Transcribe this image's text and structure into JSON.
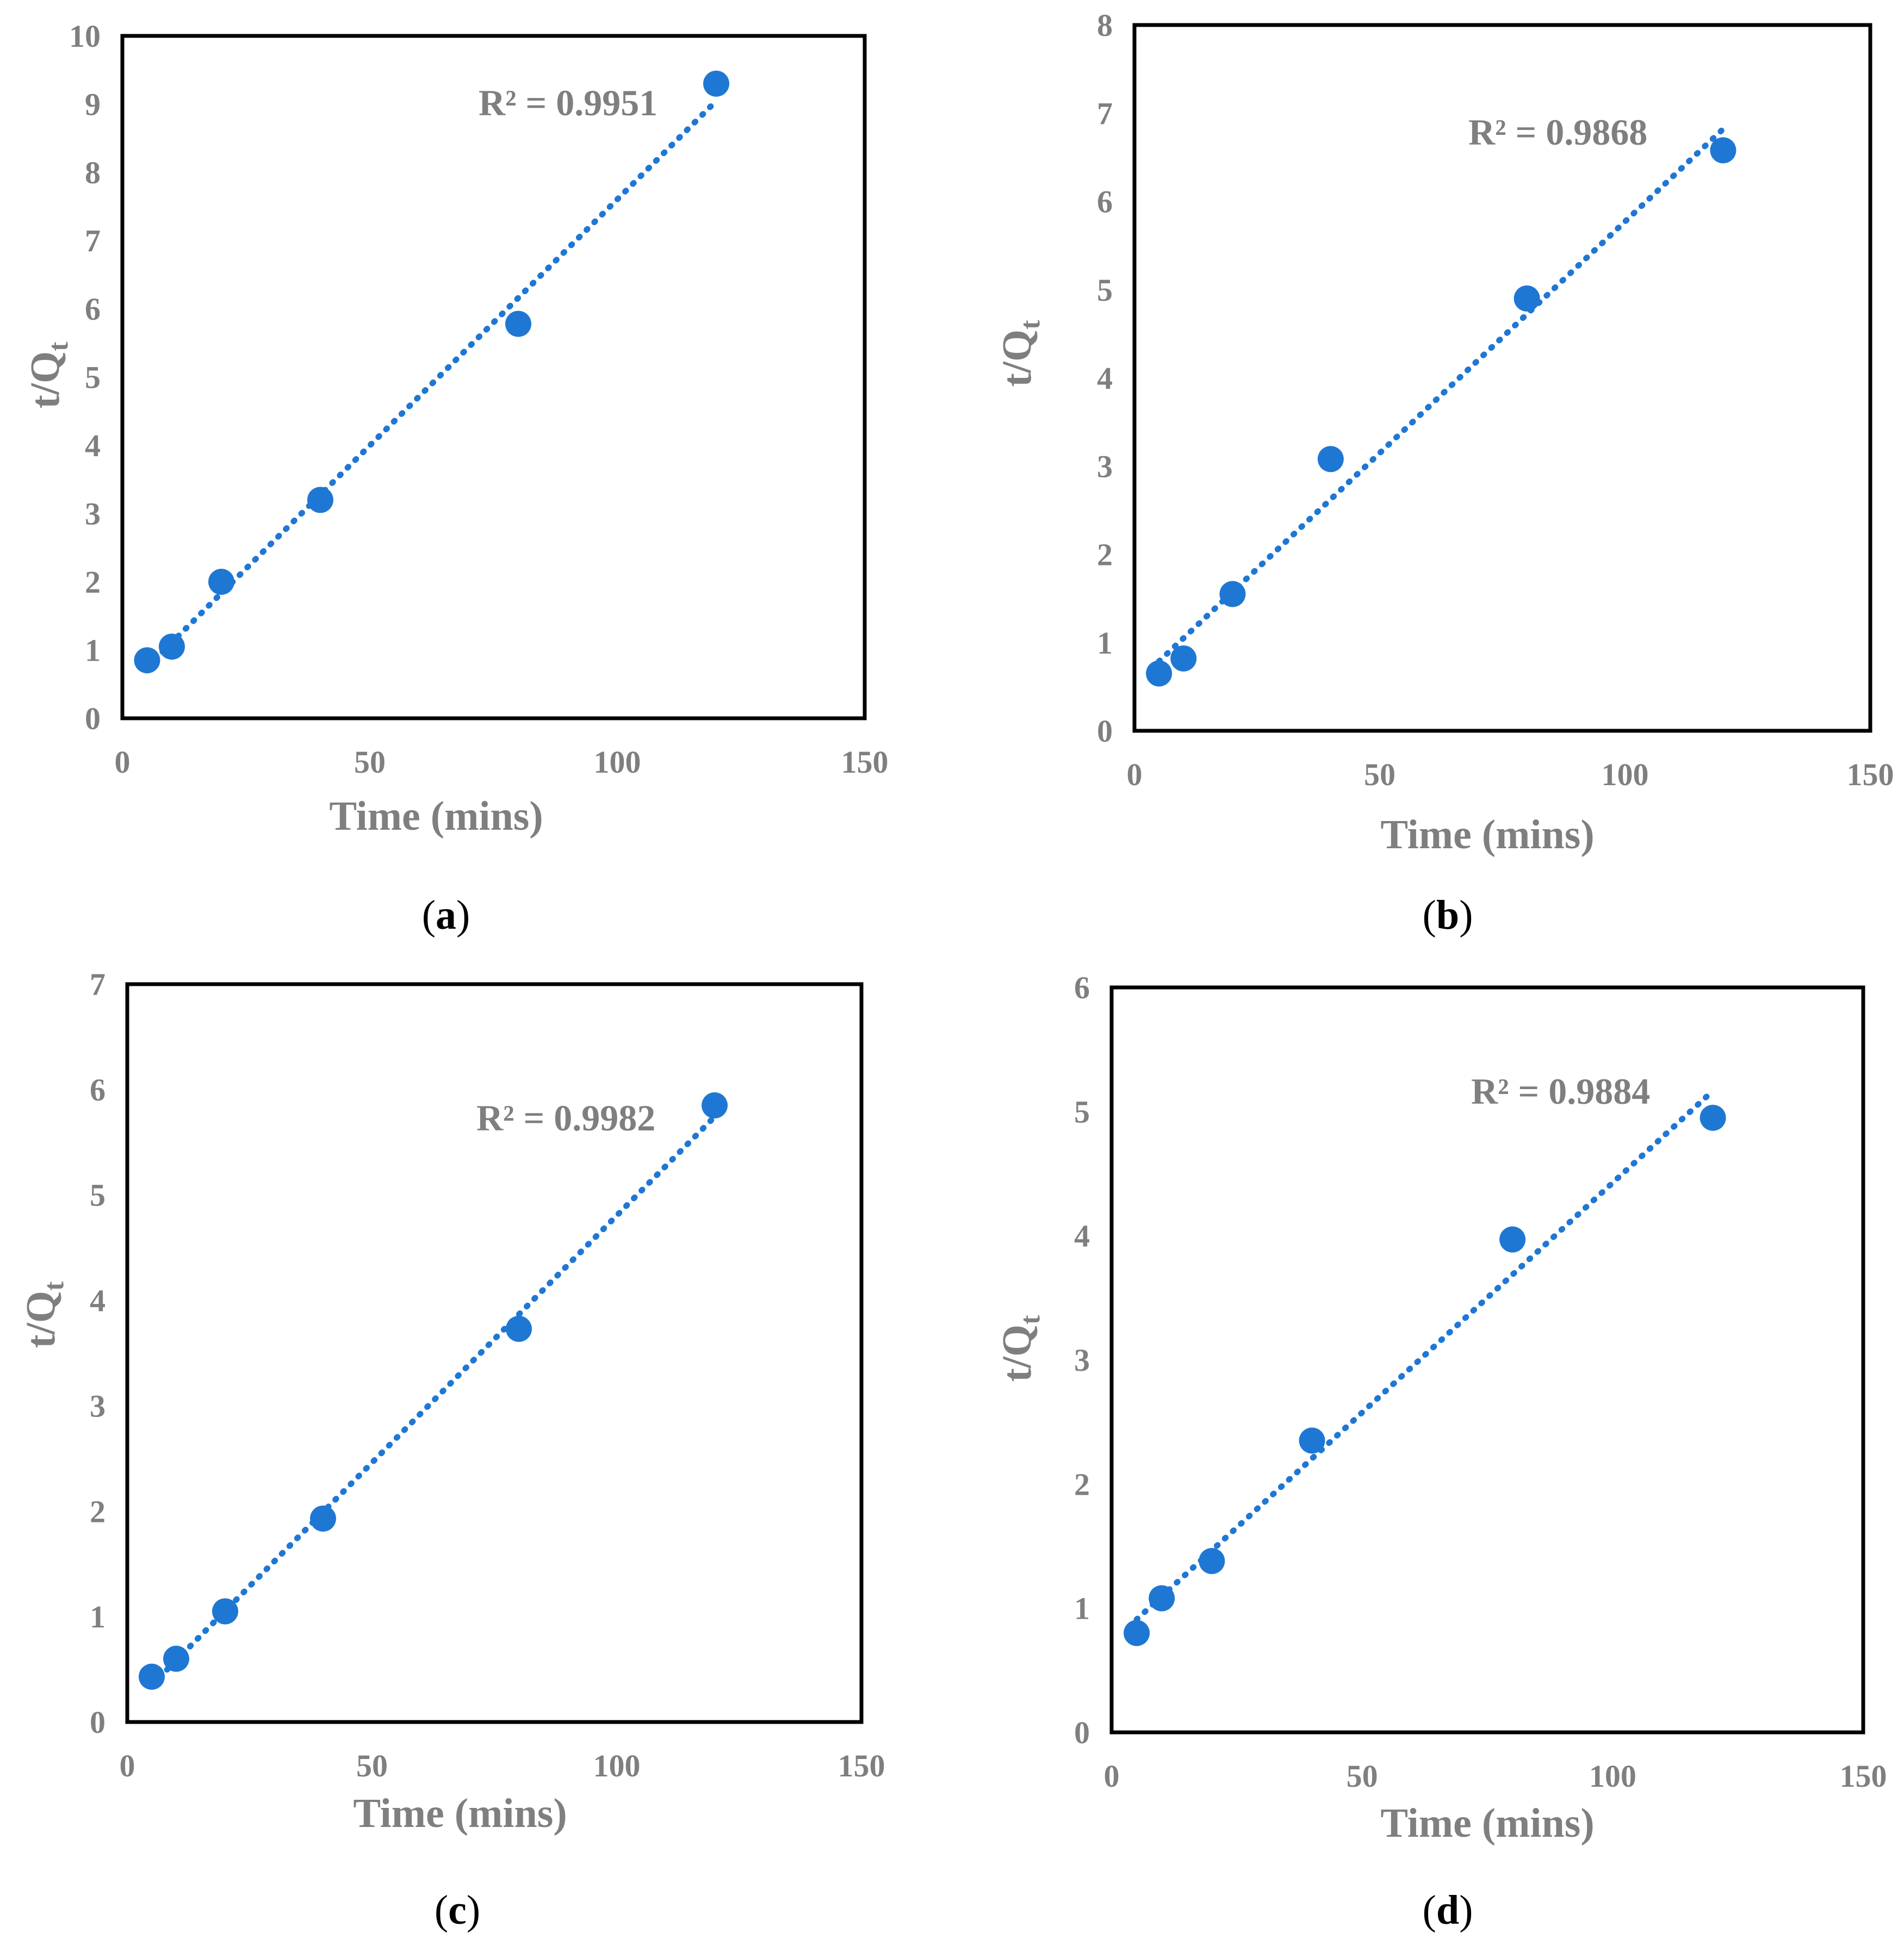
{
  "figure": {
    "panels": [
      {
        "caption": "a",
        "chart_data": {
          "type": "scatter",
          "xlabel": "Time (mins)",
          "ylabel": "t/Q",
          "ylabel_sub": "t",
          "xlim": [
            0,
            150
          ],
          "ylim": [
            0,
            10
          ],
          "xticks": [
            0,
            50,
            100,
            150
          ],
          "yticks": [
            0,
            1,
            2,
            3,
            4,
            5,
            6,
            7,
            8,
            9,
            10
          ],
          "x": [
            5,
            10,
            20,
            40,
            80,
            120
          ],
          "y": [
            0.85,
            1.05,
            2.0,
            3.2,
            5.78,
            9.3
          ],
          "trendline": "linear (dotted)",
          "r2_label": "R² = 0.9951",
          "marker_color": "#1f77d4",
          "grid": false
        }
      },
      {
        "caption": "b",
        "chart_data": {
          "type": "scatter",
          "xlabel": "Time (mins)",
          "ylabel": "t/Q",
          "ylabel_sub": "t",
          "xlim": [
            0,
            150
          ],
          "ylim": [
            0,
            8
          ],
          "xticks": [
            0,
            50,
            100,
            150
          ],
          "yticks": [
            0,
            1,
            2,
            3,
            4,
            5,
            6,
            7,
            8
          ],
          "x": [
            5,
            10,
            20,
            40,
            80,
            120
          ],
          "y": [
            0.65,
            0.82,
            1.55,
            3.08,
            4.9,
            6.58
          ],
          "trendline": "linear (dotted)",
          "r2_label": "R² = 0.9868",
          "marker_color": "#1f77d4",
          "grid": false
        }
      },
      {
        "caption": "c",
        "chart_data": {
          "type": "scatter",
          "xlabel": "Time (mins)",
          "ylabel": "t/Q",
          "ylabel_sub": "t",
          "xlim": [
            0,
            150
          ],
          "ylim": [
            0,
            7
          ],
          "xticks": [
            0,
            50,
            100,
            150
          ],
          "yticks": [
            0,
            1,
            2,
            3,
            4,
            5,
            6,
            7
          ],
          "x": [
            5,
            10,
            20,
            40,
            80,
            120
          ],
          "y": [
            0.43,
            0.6,
            1.05,
            1.93,
            3.73,
            5.85
          ],
          "trendline": "linear (dotted)",
          "r2_label": "R² = 0.9982",
          "marker_color": "#1f77d4",
          "grid": false
        }
      },
      {
        "caption": "d",
        "chart_data": {
          "type": "scatter",
          "xlabel": "Time (mins)",
          "ylabel": "t/Q",
          "ylabel_sub": "t",
          "xlim": [
            0,
            150
          ],
          "ylim": [
            0,
            6
          ],
          "xticks": [
            0,
            50,
            100,
            150
          ],
          "yticks": [
            0,
            1,
            2,
            3,
            4,
            5,
            6
          ],
          "x": [
            5,
            10,
            20,
            40,
            80,
            120
          ],
          "y": [
            0.8,
            1.08,
            1.38,
            2.35,
            3.97,
            4.95
          ],
          "trendline": "linear (dotted)",
          "r2_label": "R² = 0.9884",
          "marker_color": "#1f77d4",
          "grid": false
        }
      }
    ]
  }
}
